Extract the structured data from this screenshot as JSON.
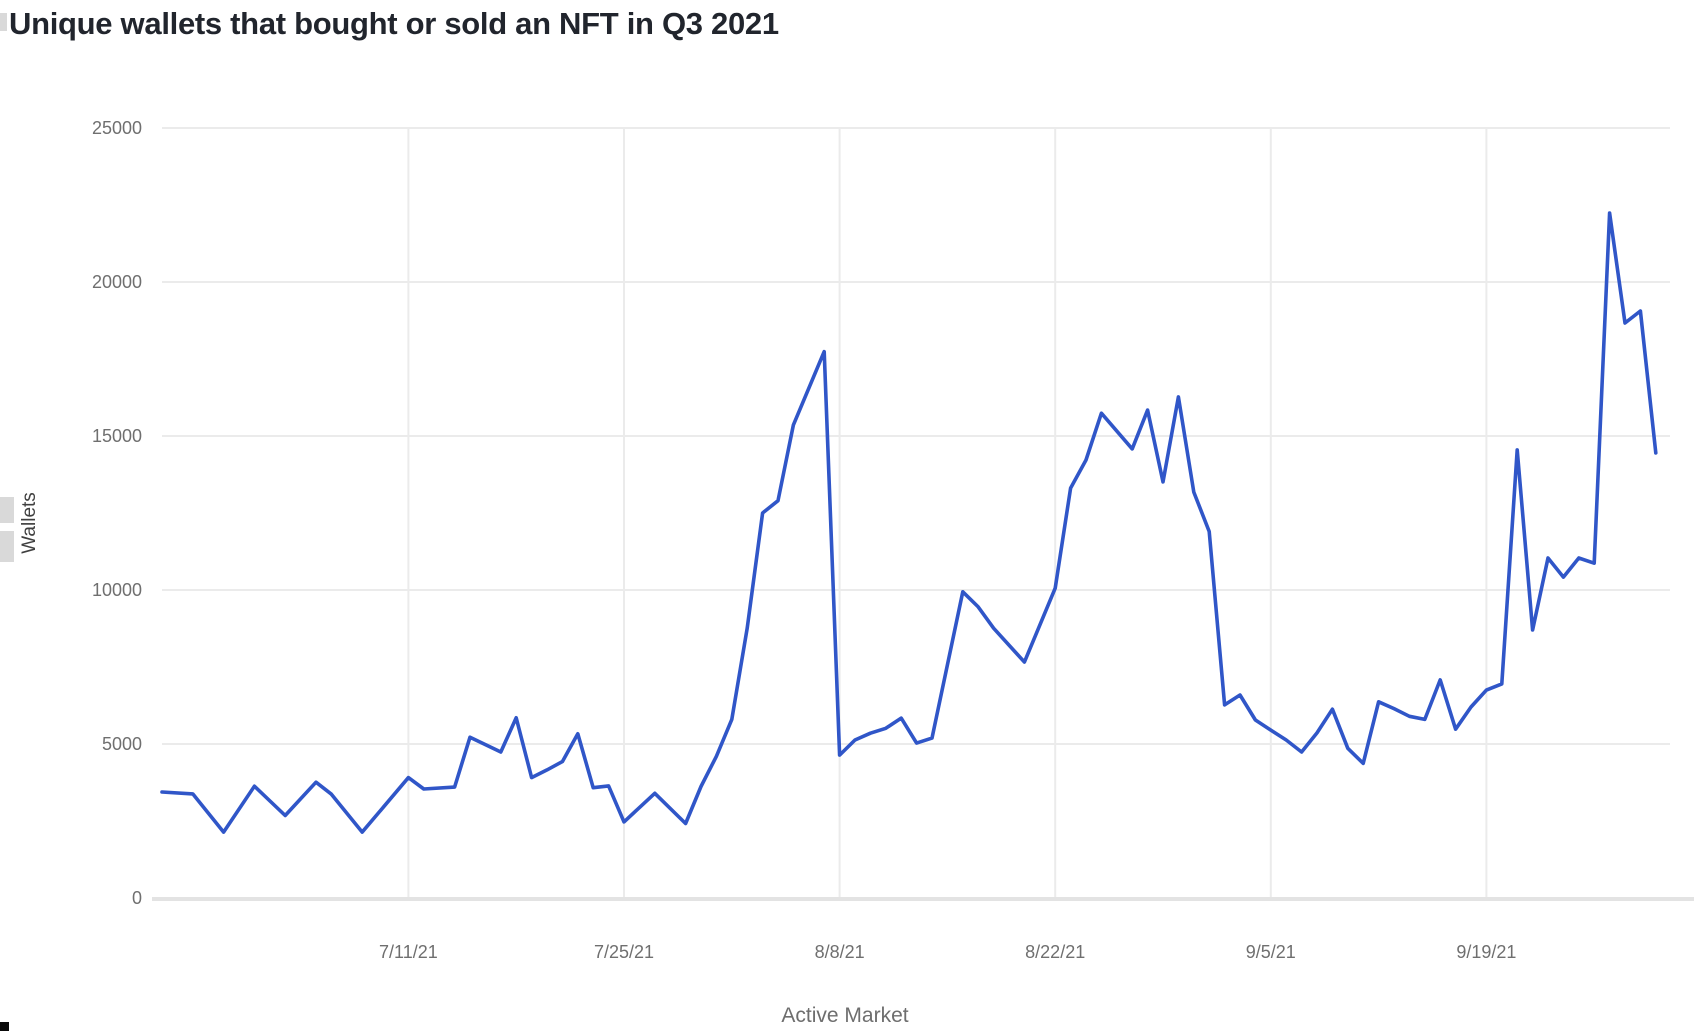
{
  "chart_data": {
    "type": "line",
    "title": "Unique wallets that bought or sold an NFT in Q3 2021",
    "xlabel": "Active Market",
    "ylabel": "Wallets",
    "ylim": [
      0,
      25000
    ],
    "y_ticks": [
      0,
      5000,
      10000,
      15000,
      20000,
      25000
    ],
    "x_tick_labels": [
      "7/11/21",
      "7/25/21",
      "8/8/21",
      "8/22/21",
      "9/5/21",
      "9/19/21"
    ],
    "grid": true,
    "legend": "none",
    "points": [
      [
        "6/25/21",
        3440
      ],
      [
        "6/27/21",
        3380
      ],
      [
        "6/29/21",
        2140
      ],
      [
        "7/1/21",
        3630
      ],
      [
        "7/3/21",
        2680
      ],
      [
        "7/5/21",
        3760
      ],
      [
        "7/6/21",
        3370
      ],
      [
        "7/8/21",
        2140
      ],
      [
        "7/11/21",
        3910
      ],
      [
        "7/12/21",
        3540
      ],
      [
        "7/14/21",
        3600
      ],
      [
        "7/15/21",
        5220
      ],
      [
        "7/17/21",
        4740
      ],
      [
        "7/18/21",
        5850
      ],
      [
        "7/19/21",
        3910
      ],
      [
        "7/20/21",
        4160
      ],
      [
        "7/21/21",
        4430
      ],
      [
        "7/22/21",
        5330
      ],
      [
        "7/23/21",
        3580
      ],
      [
        "7/24/21",
        3640
      ],
      [
        "7/25/21",
        2470
      ],
      [
        "7/27/21",
        3400
      ],
      [
        "7/29/21",
        2420
      ],
      [
        "7/30/21",
        3620
      ],
      [
        "7/31/21",
        4600
      ],
      [
        "8/1/21",
        5800
      ],
      [
        "8/2/21",
        8760
      ],
      [
        "8/3/21",
        12500
      ],
      [
        "8/4/21",
        12900
      ],
      [
        "8/5/21",
        15360
      ],
      [
        "8/7/21",
        17740
      ],
      [
        "8/8/21",
        4640
      ],
      [
        "8/9/21",
        5130
      ],
      [
        "8/10/21",
        5350
      ],
      [
        "8/11/21",
        5510
      ],
      [
        "8/12/21",
        5840
      ],
      [
        "8/13/21",
        5030
      ],
      [
        "8/14/21",
        5190
      ],
      [
        "8/16/21",
        9940
      ],
      [
        "8/17/21",
        9450
      ],
      [
        "8/18/21",
        8760
      ],
      [
        "8/20/21",
        7660
      ],
      [
        "8/22/21",
        10060
      ],
      [
        "8/23/21",
        13310
      ],
      [
        "8/24/21",
        14220
      ],
      [
        "8/25/21",
        15740
      ],
      [
        "8/27/21",
        14580
      ],
      [
        "8/28/21",
        15840
      ],
      [
        "8/29/21",
        13510
      ],
      [
        "8/30/21",
        16270
      ],
      [
        "8/31/21",
        13180
      ],
      [
        "9/1/21",
        11900
      ],
      [
        "9/2/21",
        6270
      ],
      [
        "9/3/21",
        6590
      ],
      [
        "9/4/21",
        5780
      ],
      [
        "9/5/21",
        5450
      ],
      [
        "9/6/21",
        5130
      ],
      [
        "9/7/21",
        4740
      ],
      [
        "9/8/21",
        5360
      ],
      [
        "9/9/21",
        6130
      ],
      [
        "9/10/21",
        4860
      ],
      [
        "9/11/21",
        4370
      ],
      [
        "9/12/21",
        6370
      ],
      [
        "9/13/21",
        6150
      ],
      [
        "9/14/21",
        5900
      ],
      [
        "9/15/21",
        5800
      ],
      [
        "9/16/21",
        7080
      ],
      [
        "9/17/21",
        5480
      ],
      [
        "9/18/21",
        6200
      ],
      [
        "9/19/21",
        6750
      ],
      [
        "9/20/21",
        6950
      ],
      [
        "9/21/21",
        14550
      ],
      [
        "9/22/21",
        8700
      ],
      [
        "9/23/21",
        11040
      ],
      [
        "9/24/21",
        10420
      ],
      [
        "9/25/21",
        11040
      ],
      [
        "9/26/21",
        10870
      ],
      [
        "9/27/21",
        22240
      ],
      [
        "9/28/21",
        18670
      ],
      [
        "9/29/21",
        19060
      ],
      [
        "9/30/21",
        14450
      ]
    ]
  },
  "colors": {
    "line": "#3056c8",
    "gridline": "#ebebeb",
    "baseline": "#e3e3e3",
    "tick_text": "#6f6f6f",
    "title_text": "#21252d",
    "axis_title_text": "#3f3f3f"
  }
}
